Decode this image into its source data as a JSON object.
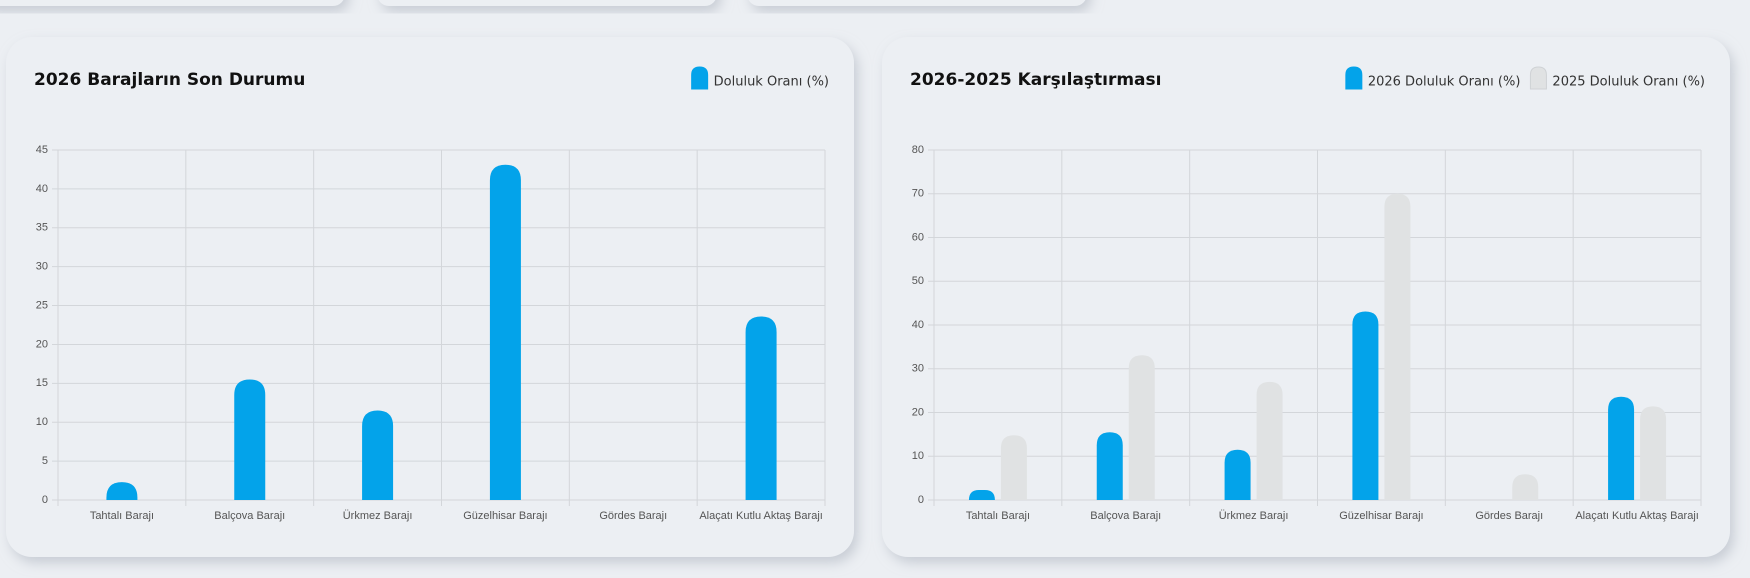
{
  "chart_data": [
    {
      "type": "bar",
      "title": "2026 Barajların Son Durumu",
      "categories": [
        "Tahtalı Barajı",
        "Balçova Barajı",
        "Ürkmez Barajı",
        "Güzelhisar Barajı",
        "Gördes Barajı",
        "Alaçatı Kutlu Aktaş Barajı"
      ],
      "series": [
        {
          "name": "Doluluk Oranı (%)",
          "color": "#03a3ea",
          "values": [
            2.3,
            15.5,
            11.5,
            43.1,
            0,
            23.6
          ]
        }
      ],
      "ylim": [
        0,
        45
      ],
      "yticks": [
        0,
        5,
        10,
        15,
        20,
        25,
        30,
        35,
        40,
        45
      ],
      "grid": true,
      "legend": "top-right"
    },
    {
      "type": "bar",
      "title": "2026-2025 Karşılaştırması",
      "categories": [
        "Tahtalı Barajı",
        "Balçova Barajı",
        "Ürkmez Barajı",
        "Güzelhisar Barajı",
        "Gördes Barajı",
        "Alaçatı Kutlu Aktaş Barajı"
      ],
      "series": [
        {
          "name": "2026 Doluluk Oranı (%)",
          "color": "#03a3ea",
          "values": [
            2.3,
            15.5,
            11.5,
            43.1,
            0,
            23.6
          ]
        },
        {
          "name": "2025 Doluluk Oranı (%)",
          "color": "#e0e2e3",
          "values": [
            14.8,
            33.1,
            27,
            70,
            5.9,
            21.4
          ]
        }
      ],
      "ylim": [
        0,
        80
      ],
      "yticks": [
        0,
        10,
        20,
        30,
        40,
        50,
        60,
        70,
        80
      ],
      "grid": true,
      "legend": "top-right"
    }
  ]
}
